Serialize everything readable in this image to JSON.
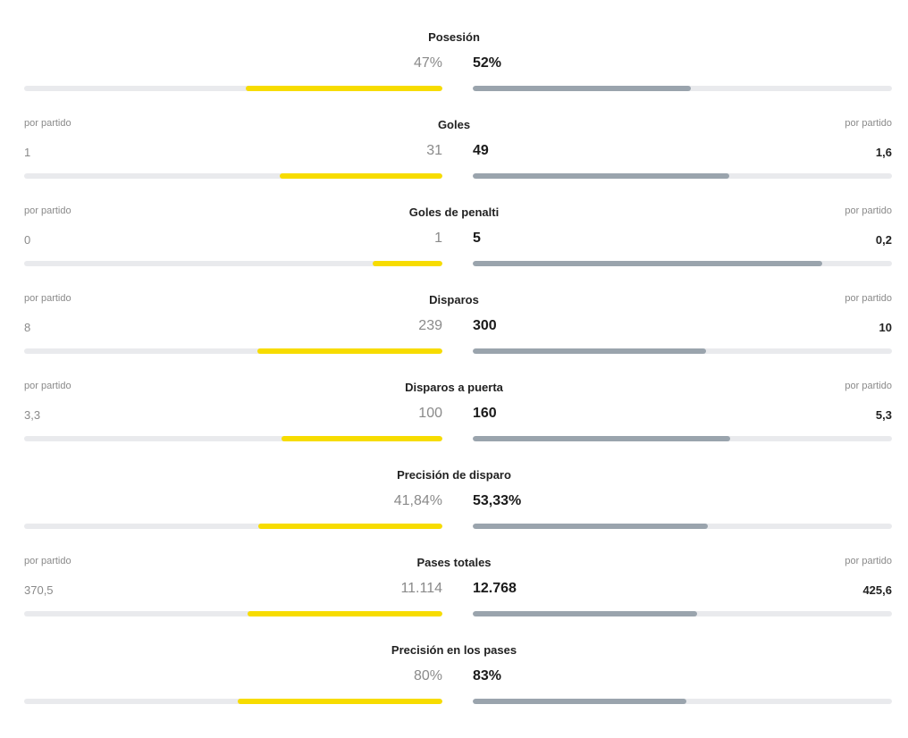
{
  "colors": {
    "home_bar": "#f7dc00",
    "away_bar": "#9aa4ad",
    "track": "#e9eaed"
  },
  "stats": [
    {
      "key": "posesion",
      "title": "Posesión",
      "home_value": "47%",
      "away_value": "52%",
      "home_fraction": 0.47,
      "away_fraction": 0.52,
      "home_per_label": "",
      "away_per_label": "",
      "home_per_value": "",
      "away_per_value": ""
    },
    {
      "key": "goles",
      "title": "Goles",
      "home_value": "31",
      "away_value": "49",
      "home_fraction": 0.388,
      "away_fraction": 0.613,
      "home_per_label": "por partido",
      "away_per_label": "por partido",
      "home_per_value": "1",
      "away_per_value": "1,6"
    },
    {
      "key": "goles-penalti",
      "title": "Goles de penalti",
      "home_value": "1",
      "away_value": "5",
      "home_fraction": 0.167,
      "away_fraction": 0.833,
      "home_per_label": "por partido",
      "away_per_label": "por partido",
      "home_per_value": "0",
      "away_per_value": "0,2"
    },
    {
      "key": "disparos",
      "title": "Disparos",
      "home_value": "239",
      "away_value": "300",
      "home_fraction": 0.443,
      "away_fraction": 0.557,
      "home_per_label": "por partido",
      "away_per_label": "por partido",
      "home_per_value": "8",
      "away_per_value": "10"
    },
    {
      "key": "disparos-puerta",
      "title": "Disparos a puerta",
      "home_value": "100",
      "away_value": "160",
      "home_fraction": 0.385,
      "away_fraction": 0.615,
      "home_per_label": "por partido",
      "away_per_label": "por partido",
      "home_per_value": "3,3",
      "away_per_value": "5,3"
    },
    {
      "key": "precision-disparo",
      "title": "Precisión de disparo",
      "home_value": "41,84%",
      "away_value": "53,33%",
      "home_fraction": 0.44,
      "away_fraction": 0.56,
      "home_per_label": "",
      "away_per_label": "",
      "home_per_value": "",
      "away_per_value": ""
    },
    {
      "key": "pases-totales",
      "title": "Pases totales",
      "home_value": "11.114",
      "away_value": "12.768",
      "home_fraction": 0.465,
      "away_fraction": 0.535,
      "home_per_label": "por partido",
      "away_per_label": "por partido",
      "home_per_value": "370,5",
      "away_per_value": "425,6"
    },
    {
      "key": "precision-pases",
      "title": "Precisión en los pases",
      "home_value": "80%",
      "away_value": "83%",
      "home_fraction": 0.49,
      "away_fraction": 0.51,
      "home_per_label": "",
      "away_per_label": "",
      "home_per_value": "",
      "away_per_value": ""
    }
  ]
}
